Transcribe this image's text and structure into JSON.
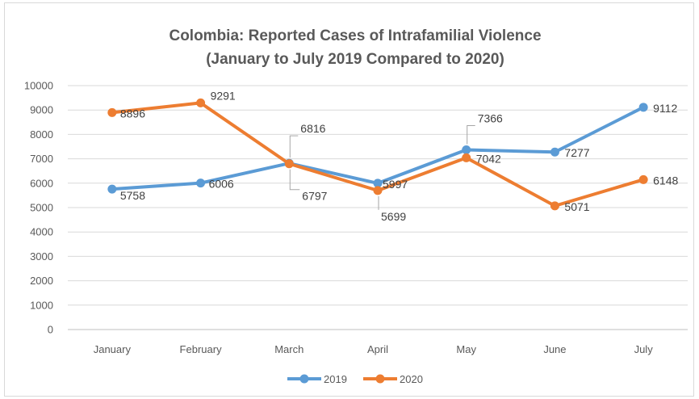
{
  "chart_data": {
    "type": "line",
    "title": "Colombia: Reported Cases of Intrafamilial Violence",
    "subtitle": "(January to July 2019 Compared to 2020)",
    "categories": [
      "January",
      "February",
      "March",
      "April",
      "May",
      "June",
      "July"
    ],
    "series": [
      {
        "name": "2019",
        "values": [
          5758,
          6006,
          6816,
          5997,
          7366,
          7277,
          9112
        ],
        "color": "#5b9bd5"
      },
      {
        "name": "2020",
        "values": [
          8896,
          9291,
          6797,
          5699,
          7042,
          5071,
          6148
        ],
        "color": "#ed7d31"
      }
    ],
    "ylim": [
      0,
      10000
    ],
    "yticks": [
      "0",
      "1000",
      "2000",
      "3000",
      "4000",
      "5000",
      "6000",
      "7000",
      "8000",
      "9000",
      "10000"
    ],
    "grid": true,
    "legend": "bottom"
  }
}
